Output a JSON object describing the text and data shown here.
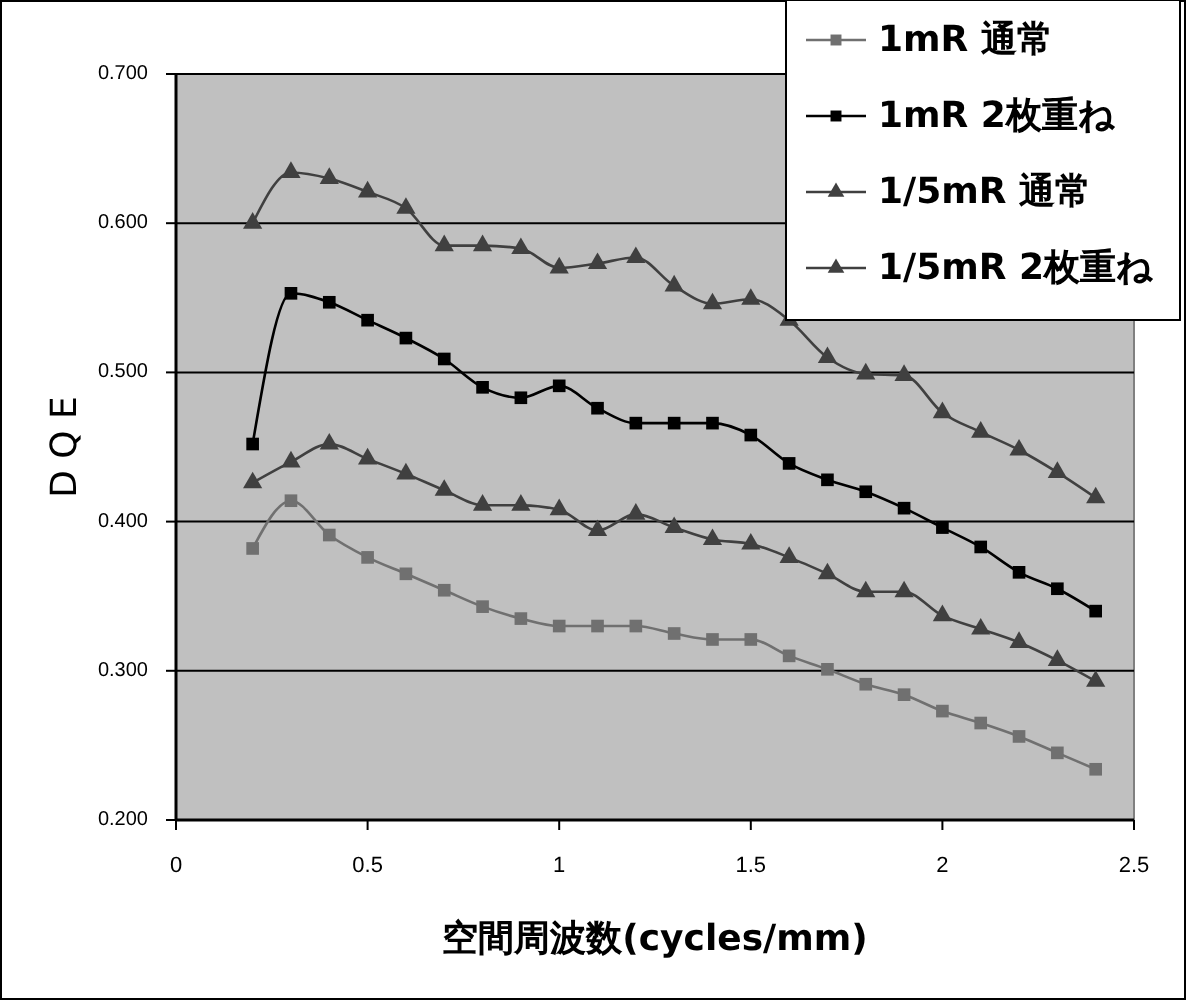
{
  "chart_data": {
    "type": "line",
    "xlabel": "空間周波数(cycles/mm)",
    "ylabel": "D Q E",
    "x": [
      0.2,
      0.3,
      0.4,
      0.5,
      0.6,
      0.7,
      0.8,
      0.9,
      1.0,
      1.1,
      1.2,
      1.3,
      1.4,
      1.5,
      1.6,
      1.7,
      1.8,
      1.9,
      2.0,
      2.1,
      2.2,
      2.3,
      2.4
    ],
    "series": [
      {
        "name": "1mR 通常",
        "color": "#707070",
        "marker": "square",
        "values": [
          0.382,
          0.414,
          0.391,
          0.376,
          0.365,
          0.354,
          0.343,
          0.335,
          0.33,
          0.33,
          0.33,
          0.325,
          0.321,
          0.321,
          0.31,
          0.301,
          0.291,
          0.284,
          0.273,
          0.265,
          0.256,
          0.245,
          0.234
        ]
      },
      {
        "name": "1mR 2枚重ね",
        "color": "#000000",
        "marker": "square",
        "values": [
          0.452,
          0.553,
          0.547,
          0.535,
          0.523,
          0.509,
          0.49,
          0.483,
          0.491,
          0.476,
          0.466,
          0.466,
          0.466,
          0.458,
          0.439,
          0.428,
          0.42,
          0.409,
          0.396,
          0.383,
          0.366,
          0.355,
          0.34
        ]
      },
      {
        "name": "1/5mR 通常",
        "color": "#404040",
        "marker": "triangle",
        "values": [
          0.426,
          0.44,
          0.452,
          0.442,
          0.432,
          0.421,
          0.411,
          0.411,
          0.408,
          0.394,
          0.405,
          0.396,
          0.388,
          0.385,
          0.376,
          0.365,
          0.353,
          0.353,
          0.337,
          0.328,
          0.319,
          0.307,
          0.293
        ]
      },
      {
        "name": "1/5mR 2枚重ね",
        "color": "#404040",
        "marker": "triangle",
        "values": [
          0.6,
          0.634,
          0.63,
          0.621,
          0.61,
          0.585,
          0.585,
          0.583,
          0.57,
          0.573,
          0.577,
          0.558,
          0.546,
          0.549,
          0.535,
          0.51,
          0.499,
          0.498,
          0.473,
          0.46,
          0.448,
          0.433,
          0.416
        ]
      }
    ],
    "xlim": [
      0,
      2.5
    ],
    "xticks": [
      0,
      0.5,
      1,
      1.5,
      2,
      2.5
    ],
    "ylim": [
      0.2,
      0.7
    ],
    "yticks": [
      {
        "value": 0.2,
        "label": "0.200"
      },
      {
        "value": 0.3,
        "label": "0.300"
      },
      {
        "value": 0.4,
        "label": "0.400"
      },
      {
        "value": 0.5,
        "label": "0.500"
      },
      {
        "value": 0.6,
        "label": "0.600"
      },
      {
        "value": 0.7,
        "label": "0.700"
      }
    ],
    "grid": "y",
    "legend": "top right"
  }
}
